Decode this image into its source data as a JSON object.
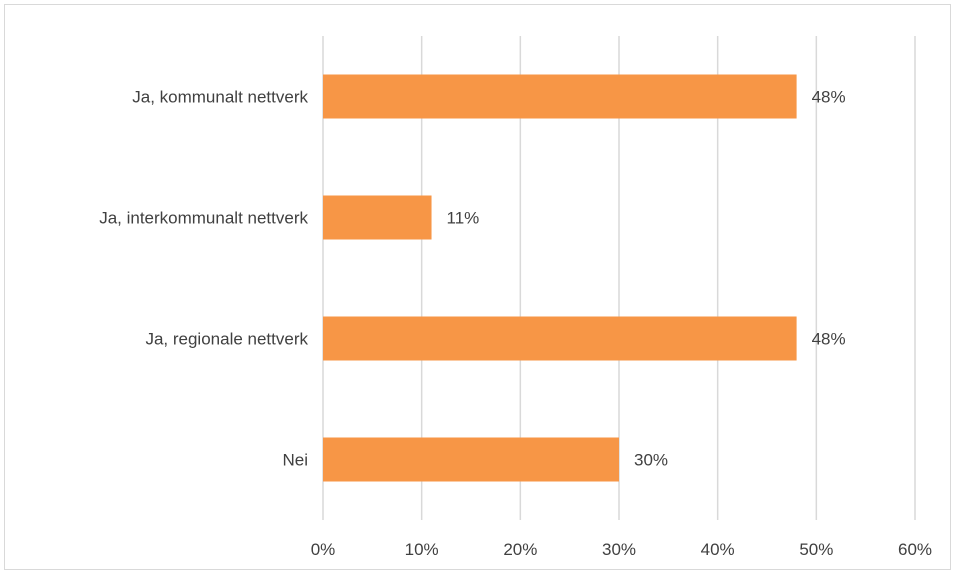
{
  "chart_data": {
    "type": "bar",
    "orientation": "horizontal",
    "categories": [
      "Ja, kommunalt nettverk",
      "Ja, interkommunalt nettverk",
      "Ja, regionale nettverk",
      "Nei"
    ],
    "values": [
      48,
      11,
      48,
      30
    ],
    "value_labels": [
      "48%",
      "11%",
      "48%",
      "30%"
    ],
    "title": "",
    "xlabel": "",
    "ylabel": "",
    "xlim": [
      0,
      60
    ],
    "ticks": [
      0,
      10,
      20,
      30,
      40,
      50,
      60
    ],
    "tick_labels": [
      "0%",
      "10%",
      "20%",
      "30%",
      "40%",
      "50%",
      "60%"
    ],
    "grid": true,
    "legend": "none",
    "colors": {
      "bar": "#F79646",
      "grid": "#d9d9d9",
      "text": "#404040"
    }
  }
}
